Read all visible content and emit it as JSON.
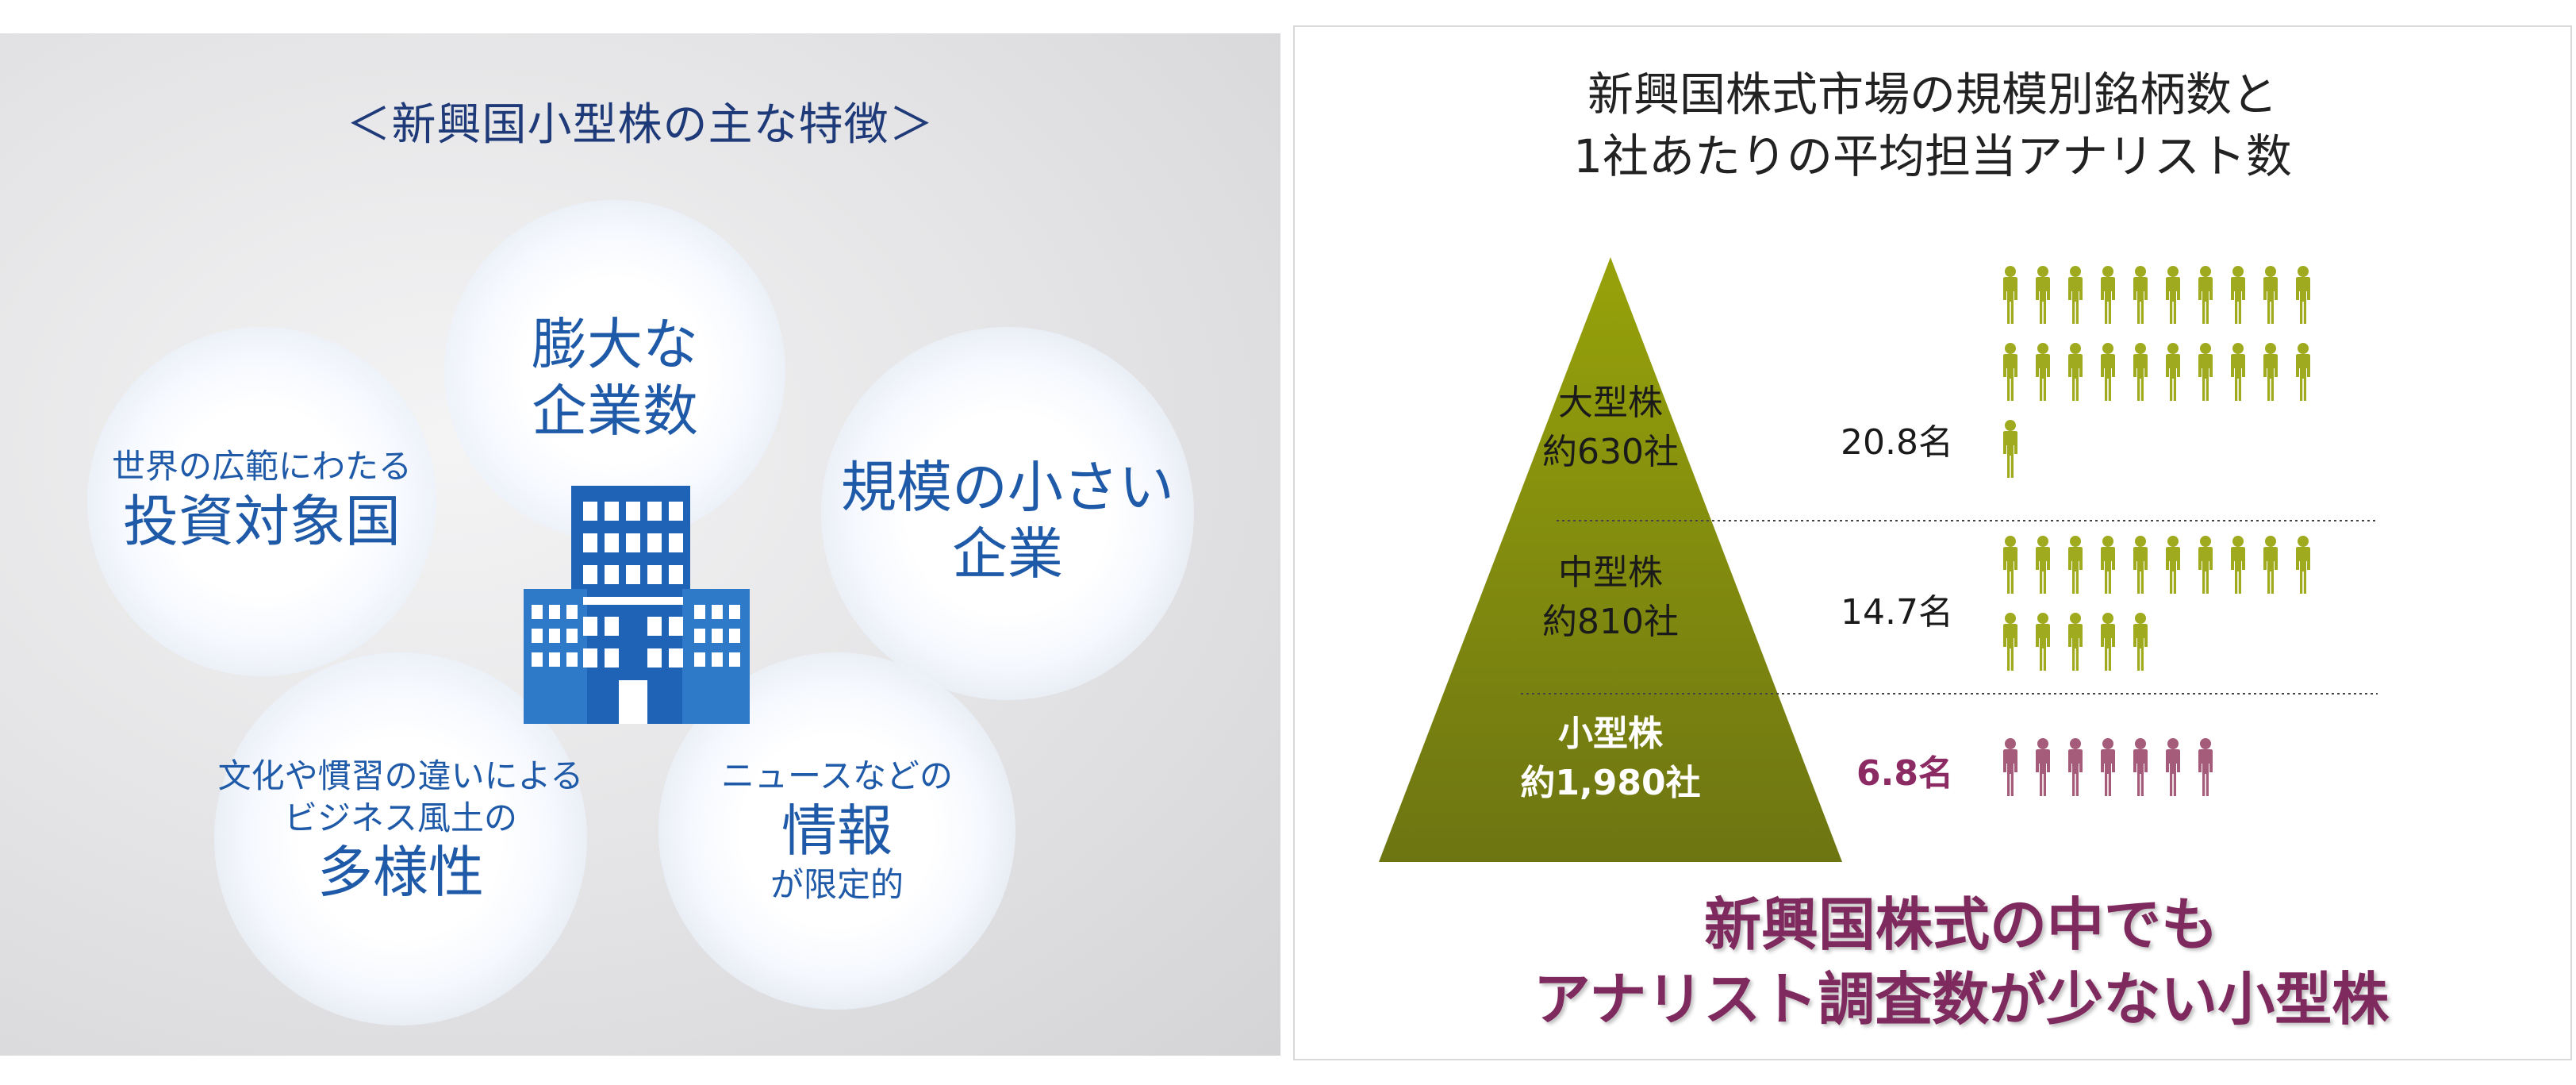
{
  "left": {
    "title": "＜新興国小型株の主な特徴＞",
    "bubbles": [
      {
        "big_lines": [
          "膨大な",
          "企業数"
        ]
      },
      {
        "small_lines": [
          "世界の広範にわたる"
        ],
        "big_lines": [
          "投資対象国"
        ]
      },
      {
        "big_lines": [
          "規模の小さい",
          "企業"
        ]
      },
      {
        "small_lines": [
          "文化や慣習の違いによる",
          "ビジネス風土の"
        ],
        "big_lines": [
          "多様性"
        ]
      },
      {
        "small_lines": [
          "ニュースなどの"
        ],
        "big_lines": [
          "情報"
        ],
        "after_lines": [
          "が限定的"
        ]
      }
    ],
    "icon": "office-building-icon"
  },
  "right": {
    "title_lines": [
      "新興国株式市場の規模別銘柄数と",
      "1社あたりの平均担当アナリスト数"
    ],
    "conclusion_lines": [
      "新興国株式の中でも",
      "アナリスト調査数が少ない小型株"
    ]
  },
  "chart_data": {
    "type": "pyramid-pictograph",
    "tiers": [
      {
        "name": "大型株",
        "count_label": "約630社",
        "companies": 630,
        "analysts": 20.8,
        "analyst_label": "20.8名"
      },
      {
        "name": "中型株",
        "count_label": "約810社",
        "companies": 810,
        "analysts": 14.7,
        "analyst_label": "14.7名"
      },
      {
        "name": "小型株",
        "count_label": "約1,980社",
        "companies": 1980,
        "analysts": 6.8,
        "analyst_label": "6.8名",
        "highlight": true
      }
    ],
    "colors": {
      "pyramid": "#8f9a10",
      "person": "#a0aa1e",
      "highlight_person": "#a55c7a",
      "highlight_text": "#8c2a63",
      "left_text": "#1f5aa8"
    }
  }
}
